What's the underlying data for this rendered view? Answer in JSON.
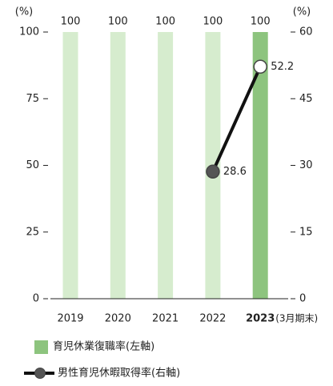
{
  "chart_data": {
    "type": "bar_line",
    "categories": [
      "2019",
      "2020",
      "2021",
      "2022",
      "2023"
    ],
    "bold_categories": [
      4
    ],
    "x_annotation": "(3月期末)",
    "y_label": "(%)",
    "y2_label": "(%)",
    "ylim": [
      0,
      100
    ],
    "yticks": [
      0,
      25,
      50,
      75,
      100
    ],
    "y2lim": [
      0,
      60
    ],
    "y2ticks": [
      0,
      15,
      30,
      45,
      60
    ],
    "series": [
      {
        "name": "育児休業復職率(左軸)",
        "type": "bar",
        "color": "#8dc47e",
        "colors": [
          "#d6ecce",
          "#d6ecce",
          "#d6ecce",
          "#d6ecce",
          "#8dc47e"
        ],
        "values": [
          100,
          100,
          100,
          100,
          100
        ]
      },
      {
        "name": "男性育児休暇取得率(右軸)",
        "type": "line",
        "axis": "y2",
        "color": "#111111",
        "marker_colors": [
          null,
          null,
          null,
          "#555555",
          "#ffffff"
        ],
        "values": [
          null,
          null,
          null,
          28.6,
          52.2
        ]
      }
    ]
  }
}
